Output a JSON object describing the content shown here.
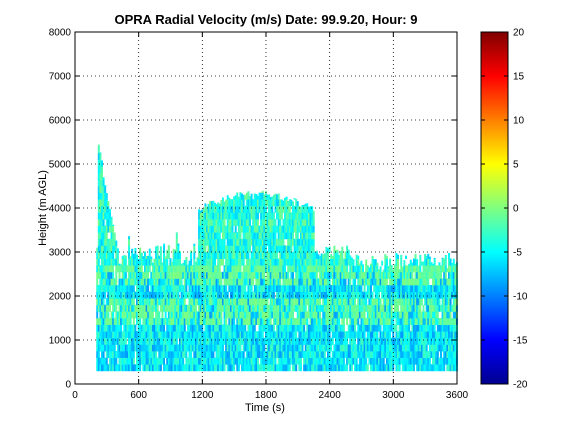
{
  "chart_data": {
    "type": "heatmap",
    "title": "OPRA Radial Velocity (m/s)  Date: 99.9.20, Hour: 9",
    "xlabel": "Time (s)",
    "ylabel": "Height (m AGL)",
    "xlim": [
      0,
      3600
    ],
    "ylim": [
      0,
      8000
    ],
    "x_ticks": [
      "0",
      "600",
      "1200",
      "1800",
      "2400",
      "3000",
      "3600"
    ],
    "y_ticks": [
      "0",
      "1000",
      "2000",
      "3000",
      "4000",
      "5000",
      "6000",
      "7000",
      "8000"
    ],
    "grid": true,
    "colormap": "jet",
    "colorbar": {
      "clim": [
        -20,
        20
      ],
      "ticks": [
        "-20",
        "-15",
        "-10",
        "-5",
        "0",
        "5",
        "10",
        "15",
        "20"
      ]
    },
    "data_extent": {
      "time_s": [
        200,
        3600
      ],
      "height_m": [
        300,
        5500
      ],
      "typical_velocity_ms": [
        -9,
        -1
      ]
    }
  }
}
